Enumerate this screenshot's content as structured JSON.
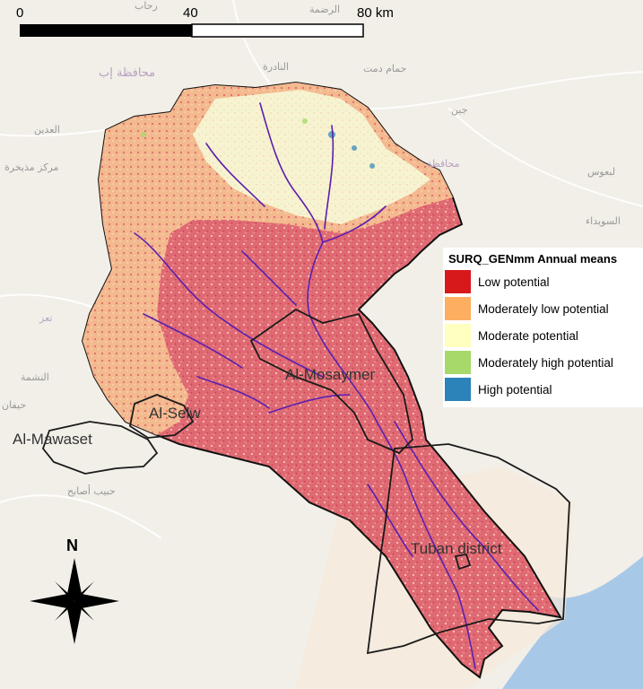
{
  "scale_bar": {
    "ticks": [
      "0",
      "40",
      "80 km"
    ]
  },
  "legend": {
    "title": "SURQ_GENmm Annual means",
    "items": [
      {
        "label": "Low potential",
        "color": "#d7191c"
      },
      {
        "label": "Moderately low potential",
        "color": "#fdae61"
      },
      {
        "label": "Moderate potential",
        "color": "#ffffbf"
      },
      {
        "label": "Moderately high potential",
        "color": "#a6d96a"
      },
      {
        "label": "High potential",
        "color": "#2b83ba"
      }
    ]
  },
  "regions": [
    {
      "id": "al-mosaymer",
      "label": "Al-Mosaymer"
    },
    {
      "id": "al-selw",
      "label": "Al-Selw"
    },
    {
      "id": "al-mawaset",
      "label": "Al-Mawaset"
    },
    {
      "id": "tuban",
      "label": "Tuban district"
    }
  ],
  "basemap_labels": [
    "رحاب",
    "الرضمة",
    "محافظة إب",
    "حمام دمت",
    "النادرة",
    "جبن",
    "العدين",
    "مركز مذيخرة",
    "محافظة",
    "تعز",
    "النشمة",
    "حيفان",
    "حبيب أصابح",
    "لبعوس",
    "السويداء"
  ],
  "north_arrow": {
    "label": "N"
  },
  "colors": {
    "basemap": "#f2efe9",
    "sea": "#a8c8e8",
    "river": "#5a1fb0",
    "boundary": "#1a1a1a"
  }
}
